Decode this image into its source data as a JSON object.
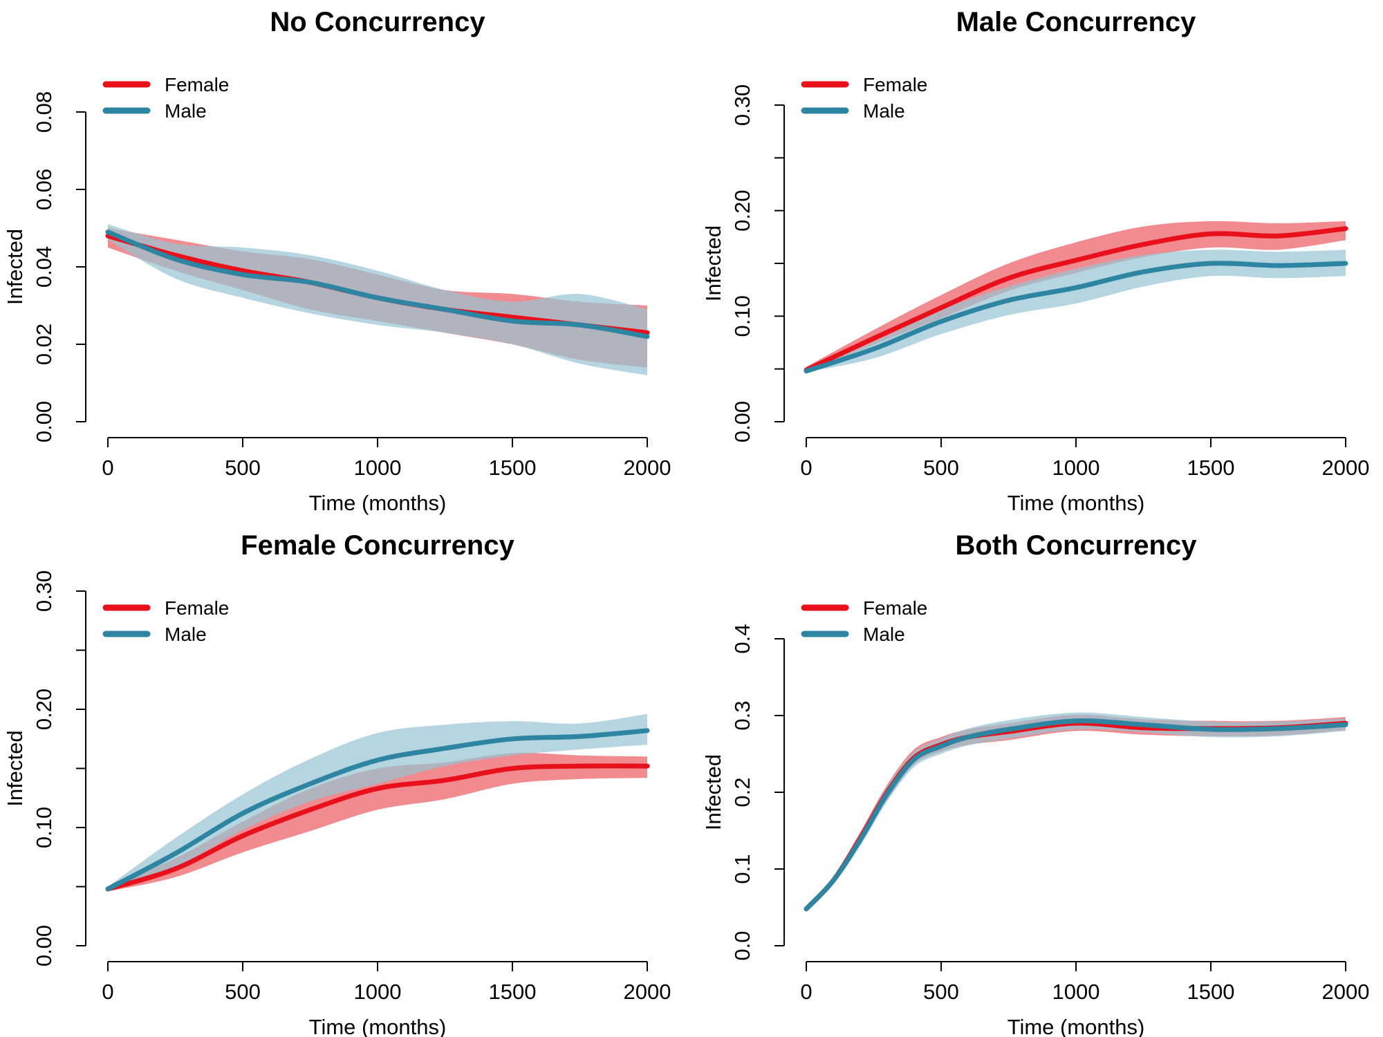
{
  "legend_labels": [
    "Female",
    "Male"
  ],
  "colors": {
    "female_line": "#e8101b",
    "female_band": "#f07e84",
    "male_line": "#2e85a2",
    "male_band": "#96c4d3",
    "overlap_band": "#8c7383"
  },
  "chart_data": [
    {
      "type": "line",
      "title": "No Concurrency",
      "xlabel": "Time (months)",
      "ylabel": "Infected",
      "xlim": [
        0,
        2000
      ],
      "ylim": [
        0,
        0.08
      ],
      "xticks": [
        0,
        500,
        1000,
        1500,
        2000
      ],
      "yticks": [
        0.0,
        0.02,
        0.04,
        0.06,
        0.08
      ],
      "ytick_labels": [
        "0.00",
        "0.02",
        "0.04",
        "0.06",
        "0.08"
      ],
      "legend": "top-left",
      "x": [
        0,
        250,
        500,
        750,
        1000,
        1250,
        1500,
        1750,
        2000
      ],
      "series": [
        {
          "name": "Female",
          "values": [
            0.048,
            0.043,
            0.039,
            0.036,
            0.032,
            0.029,
            0.027,
            0.025,
            0.023
          ],
          "lower": [
            0.045,
            0.039,
            0.034,
            0.029,
            0.026,
            0.023,
            0.02,
            0.016,
            0.014
          ],
          "upper": [
            0.05,
            0.047,
            0.044,
            0.042,
            0.038,
            0.034,
            0.033,
            0.031,
            0.03
          ]
        },
        {
          "name": "Male",
          "values": [
            0.049,
            0.042,
            0.038,
            0.036,
            0.032,
            0.029,
            0.026,
            0.025,
            0.022
          ],
          "lower": [
            0.047,
            0.037,
            0.032,
            0.028,
            0.025,
            0.023,
            0.02,
            0.015,
            0.012
          ],
          "upper": [
            0.051,
            0.046,
            0.045,
            0.043,
            0.039,
            0.034,
            0.031,
            0.033,
            0.029
          ]
        }
      ]
    },
    {
      "type": "line",
      "title": "Male Concurrency",
      "xlabel": "Time (months)",
      "ylabel": "Infected",
      "xlim": [
        0,
        2000
      ],
      "ylim": [
        0,
        0.3
      ],
      "xticks": [
        0,
        500,
        1000,
        1500,
        2000
      ],
      "yticks": [
        0.0,
        0.05,
        0.1,
        0.15,
        0.2,
        0.25,
        0.3
      ],
      "ytick_labels": [
        "0.00",
        "",
        "0.10",
        "",
        "0.20",
        "",
        "0.30"
      ],
      "legend": "top-left",
      "x": [
        0,
        250,
        500,
        750,
        1000,
        1250,
        1500,
        1750,
        2000
      ],
      "series": [
        {
          "name": "Female",
          "values": [
            0.049,
            0.079,
            0.108,
            0.136,
            0.153,
            0.168,
            0.178,
            0.176,
            0.183
          ],
          "lower": [
            0.047,
            0.073,
            0.098,
            0.124,
            0.141,
            0.156,
            0.165,
            0.163,
            0.172
          ],
          "upper": [
            0.052,
            0.087,
            0.12,
            0.15,
            0.17,
            0.185,
            0.19,
            0.188,
            0.19
          ]
        },
        {
          "name": "Male",
          "values": [
            0.048,
            0.069,
            0.095,
            0.115,
            0.127,
            0.142,
            0.15,
            0.148,
            0.15
          ],
          "lower": [
            0.047,
            0.06,
            0.083,
            0.101,
            0.112,
            0.128,
            0.138,
            0.136,
            0.138
          ],
          "upper": [
            0.05,
            0.076,
            0.106,
            0.128,
            0.145,
            0.158,
            0.163,
            0.161,
            0.163
          ]
        }
      ]
    },
    {
      "type": "line",
      "title": "Female Concurrency",
      "xlabel": "Time (months)",
      "ylabel": "Infected",
      "xlim": [
        0,
        2000
      ],
      "ylim": [
        0,
        0.3
      ],
      "xticks": [
        0,
        500,
        1000,
        1500,
        2000
      ],
      "yticks": [
        0.0,
        0.05,
        0.1,
        0.15,
        0.2,
        0.25,
        0.3
      ],
      "ytick_labels": [
        "0.00",
        "",
        "0.10",
        "",
        "0.20",
        "",
        "0.30"
      ],
      "legend": "top-left",
      "x": [
        0,
        250,
        500,
        750,
        1000,
        1250,
        1500,
        1750,
        2000
      ],
      "series": [
        {
          "name": "Female",
          "values": [
            0.048,
            0.065,
            0.093,
            0.115,
            0.133,
            0.14,
            0.15,
            0.152,
            0.152
          ],
          "lower": [
            0.046,
            0.058,
            0.079,
            0.097,
            0.115,
            0.124,
            0.137,
            0.141,
            0.142
          ],
          "upper": [
            0.05,
            0.074,
            0.105,
            0.133,
            0.15,
            0.155,
            0.163,
            0.161,
            0.16
          ]
        },
        {
          "name": "Male",
          "values": [
            0.048,
            0.078,
            0.112,
            0.137,
            0.157,
            0.167,
            0.175,
            0.177,
            0.182
          ],
          "lower": [
            0.046,
            0.066,
            0.098,
            0.122,
            0.137,
            0.152,
            0.161,
            0.166,
            0.17
          ],
          "upper": [
            0.05,
            0.091,
            0.128,
            0.158,
            0.18,
            0.187,
            0.19,
            0.188,
            0.196
          ]
        }
      ]
    },
    {
      "type": "line",
      "title": "Both Concurrency",
      "xlabel": "Time (months)",
      "ylabel": "Infected",
      "xlim": [
        0,
        2000
      ],
      "ylim": [
        0,
        0.4
      ],
      "xticks": [
        0,
        500,
        1000,
        1500,
        2000
      ],
      "yticks": [
        0.0,
        0.1,
        0.2,
        0.3,
        0.4
      ],
      "ytick_labels": [
        "0.0",
        "0.1",
        "0.2",
        "0.3",
        "0.4"
      ],
      "legend": "top-left",
      "x": [
        0,
        100,
        200,
        300,
        400,
        500,
        600,
        750,
        1000,
        1250,
        1500,
        1750,
        2000
      ],
      "series": [
        {
          "name": "Female",
          "values": [
            0.048,
            0.085,
            0.14,
            0.2,
            0.245,
            0.262,
            0.272,
            0.279,
            0.29,
            0.284,
            0.283,
            0.284,
            0.29
          ],
          "lower": [
            0.046,
            0.08,
            0.132,
            0.19,
            0.236,
            0.253,
            0.262,
            0.268,
            0.28,
            0.275,
            0.273,
            0.274,
            0.281
          ],
          "upper": [
            0.05,
            0.09,
            0.148,
            0.21,
            0.256,
            0.272,
            0.282,
            0.29,
            0.301,
            0.295,
            0.293,
            0.293,
            0.298
          ]
        },
        {
          "name": "Male",
          "values": [
            0.048,
            0.085,
            0.138,
            0.198,
            0.243,
            0.26,
            0.272,
            0.282,
            0.293,
            0.288,
            0.282,
            0.283,
            0.288
          ],
          "lower": [
            0.046,
            0.08,
            0.13,
            0.188,
            0.233,
            0.25,
            0.261,
            0.27,
            0.282,
            0.278,
            0.272,
            0.273,
            0.28
          ],
          "upper": [
            0.05,
            0.09,
            0.146,
            0.208,
            0.253,
            0.27,
            0.283,
            0.294,
            0.304,
            0.298,
            0.292,
            0.292,
            0.296
          ]
        }
      ]
    }
  ]
}
